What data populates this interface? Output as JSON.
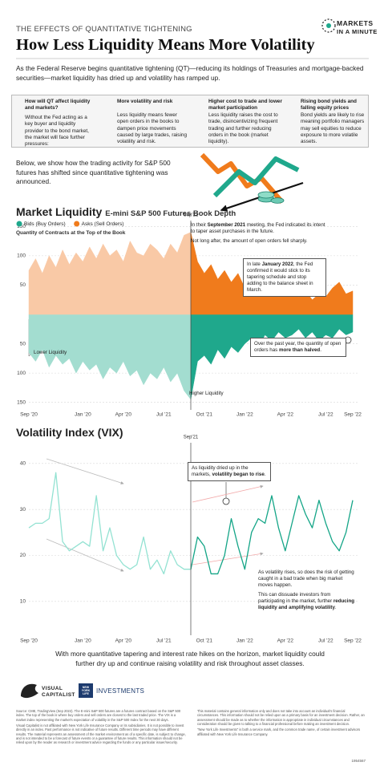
{
  "header": {
    "kicker": "THE EFFECTS OF QUANTITATIVE TIGHTENING",
    "title": "How Less Liquidity Means More Volatility",
    "logo": [
      "MARKETS",
      "IN A MINUTE"
    ]
  },
  "intro": "As the Federal Reserve begins quantitative tightening (QT)—reducing its holdings of Treasuries and mortgage-backed securities—market liquidity has dried up and volatility has ramped up.",
  "box": {
    "title": "How will QT affect liquidity and markets?",
    "text": "Without the Fed acting as a key buyer and liquidity provider to the bond market, the market will face further pressures:",
    "items": [
      {
        "title": "More volatility and risk",
        "text": "Less liquidity means fewer open orders in the books to dampen price movements caused by large trades, raising volatility and risk."
      },
      {
        "title": "Higher cost to trade and lower market participation",
        "text": "Less liquidity raises the cost to trade, disincentivizing frequent trading and further reducing orders in the book (market liquidity)."
      },
      {
        "title": "Rising bond yields and falling equity prices",
        "text": "Bond yields are likely to rise meaning portfolio managers may sell equities to reduce exposure to more volatile assets."
      }
    ]
  },
  "lead": "Below, we show how the trading activity for S&P 500 futures has shifted since quantitative tightening was announced.",
  "chart_data": [
    {
      "type": "area",
      "title": "Market Liquidity",
      "subtitle": "E-mini S&P 500 Futures Book Depth",
      "y_label": "Quantity of Contracts at the Top of the Book",
      "x": [
        0,
        0.5,
        1,
        1.5,
        2,
        2.5,
        3,
        3.5,
        4,
        4.5,
        5,
        5.5,
        6,
        6.5,
        7,
        7.5,
        8,
        8.5,
        9,
        9.5,
        10,
        10.5,
        11,
        11.5,
        12,
        12.5,
        13,
        13.5,
        14,
        14.5,
        15,
        15.5,
        16,
        16.5,
        17,
        17.5,
        18,
        18.5,
        19,
        19.5,
        20,
        20.5,
        21,
        21.5,
        22,
        22.5,
        23,
        23.5,
        24
      ],
      "xlim": [
        0,
        24
      ],
      "xticks": [
        {
          "value": 0,
          "label": "Sep '20"
        },
        {
          "value": 4,
          "label": "Jan '20"
        },
        {
          "value": 7,
          "label": "Apr '20"
        },
        {
          "value": 10,
          "label": "Jul '21"
        },
        {
          "value": 13,
          "label": "Oct '21"
        },
        {
          "value": 16,
          "label": "Jan '22"
        },
        {
          "value": 19,
          "label": "Apr '22"
        },
        {
          "value": 22,
          "label": "Jul '22"
        },
        {
          "value": 24,
          "label": "Sep '22"
        }
      ],
      "ylim": [
        -160,
        160
      ],
      "yticks": [
        {
          "value": -150,
          "label": "150"
        },
        {
          "value": -100,
          "label": "100"
        },
        {
          "value": -50,
          "label": "50"
        },
        50,
        100,
        150
      ],
      "grid": true,
      "marker": {
        "x": 12,
        "label": "Sep'21"
      },
      "series": [
        {
          "name": "Bids (Buy Orders)",
          "colors": [
            "#a3ddd0",
            "#1fa88c"
          ],
          "values": [
            -65,
            -80,
            -60,
            -90,
            -70,
            -85,
            -75,
            -100,
            -80,
            -95,
            -85,
            -110,
            -90,
            -100,
            -80,
            -105,
            -95,
            -120,
            -100,
            -110,
            -90,
            -115,
            -100,
            -130,
            -145,
            -80,
            -70,
            -85,
            -60,
            -75,
            -55,
            -65,
            -50,
            -40,
            -55,
            -35,
            -45,
            -30,
            -40,
            -35,
            -25,
            -40,
            -30,
            -45,
            -35,
            -40,
            -25,
            -35,
            -30
          ]
        },
        {
          "name": "Asks (Sell Orders)",
          "colors": [
            "#f9c9a6",
            "#f07b1c"
          ],
          "values": [
            75,
            95,
            70,
            100,
            80,
            110,
            85,
            105,
            90,
            115,
            95,
            120,
            100,
            110,
            90,
            125,
            105,
            100,
            120,
            110,
            95,
            120,
            105,
            135,
            140,
            90,
            70,
            85,
            60,
            75,
            55,
            70,
            45,
            35,
            50,
            30,
            40,
            30,
            45,
            35,
            30,
            40,
            25,
            35,
            30,
            45,
            55,
            35,
            40
          ]
        }
      ],
      "annotations": [
        {
          "parts": [
            {
              "text": "In their "
            },
            {
              "text": "September 2021",
              "bold": true
            },
            {
              "text": " meeting, the Fed indicated its intent to taper asset purchases in the future."
            }
          ]
        },
        {
          "parts": [
            {
              "text": "Not long after, the amount of open orders fell sharply."
            }
          ]
        },
        {
          "parts": [
            {
              "text": "In late "
            },
            {
              "text": "January 2022",
              "bold": true
            },
            {
              "text": ", the Fed confirmed it would stick to its tapering schedule and stop adding to the balance sheet in March."
            }
          ]
        },
        {
          "parts": [
            {
              "text": "Over the past year, the quantity of open orders has "
            },
            {
              "text": "more than halved",
              "bold": true
            },
            {
              "text": "."
            }
          ]
        },
        {
          "parts": [
            {
              "text": "Lower Liquidity"
            }
          ]
        },
        {
          "parts": [
            {
              "text": "Higher Liquidity"
            }
          ]
        }
      ]
    },
    {
      "type": "line",
      "title": "Volatility Index (VIX)",
      "x": [
        0,
        0.5,
        1,
        1.5,
        2,
        2.5,
        3,
        3.5,
        4,
        4.5,
        5,
        5.5,
        6,
        6.5,
        7,
        7.5,
        8,
        8.5,
        9,
        9.5,
        10,
        10.5,
        11,
        11.5,
        12,
        12.5,
        13,
        13.5,
        14,
        14.5,
        15,
        15.5,
        16,
        16.5,
        17,
        17.5,
        18,
        18.5,
        19,
        19.5,
        20,
        20.5,
        21,
        21.5,
        22,
        22.5,
        23,
        23.5,
        24
      ],
      "xlim": [
        0,
        24
      ],
      "xticks": [
        {
          "value": 0,
          "label": "Sep '20"
        },
        {
          "value": 4,
          "label": "Jan '20"
        },
        {
          "value": 7,
          "label": "Apr '20"
        },
        {
          "value": 10,
          "label": "Jul '21"
        },
        {
          "value": 13,
          "label": "Oct '21"
        },
        {
          "value": 16,
          "label": "Jan '22"
        },
        {
          "value": 19,
          "label": "Apr '22"
        },
        {
          "value": 22,
          "label": "Jul '22"
        },
        {
          "value": 24,
          "label": "Sep '22"
        }
      ],
      "ylim": [
        3,
        44.5
      ],
      "yticks": [
        10,
        20,
        30,
        40
      ],
      "grid": true,
      "marker": {
        "x": 12,
        "label": "Sep'21"
      },
      "series": [
        {
          "name": "VIX",
          "colors": [
            "#93e2d2",
            "#14a587"
          ],
          "values": [
            26,
            27,
            27,
            28,
            38,
            23,
            21,
            22,
            23,
            22,
            33,
            21,
            26,
            20,
            18,
            17,
            18,
            24,
            17,
            19,
            16,
            21,
            18,
            17,
            17,
            24,
            22,
            16,
            16,
            20,
            28,
            22,
            17,
            25,
            28,
            27,
            33,
            26,
            21,
            27,
            33,
            29,
            26,
            32,
            27,
            23,
            21,
            25,
            32
          ]
        }
      ],
      "annotations": [
        {
          "parts": [
            {
              "text": "As liquidity dried up in the markets, "
            },
            {
              "text": "volatility began to rise",
              "bold": true
            },
            {
              "text": "."
            }
          ]
        },
        {
          "parts": [
            {
              "text": "As volatility rises, so does the risk of getting caught in a bad trade when big market moves happen."
            }
          ]
        },
        {
          "parts": [
            {
              "text": "This can dissuade investors from participating in the market, further "
            },
            {
              "text": "reducing liquidity and amplifying volatility",
              "bold": true
            },
            {
              "text": "."
            }
          ]
        }
      ]
    }
  ],
  "conclusion": "With more quantitative tapering and interest rate hikes on the horizon, market liquidity could further dry up and continue raising volatility and risk throughout asset classes.",
  "footer": {
    "brand": [
      "VISUAL",
      "CAPITALIST"
    ],
    "partner": [
      "NEW YORK LIFE",
      "INVESTMENTS"
    ],
    "notes_left": [
      "Source: CME, TradingView (Sep 2022). The E-mini S&P 500 futures are a futures contract based on the S&P 500 index. The top of the book is where buy orders and sell orders are closest to the last traded price. The VIX is a market index representing the market's expectation of volatility in the S&P 500 Index for the next 30 days.",
      "Visual Capitalist is not affiliated with New York Life Insurance Company or its subsidiaries. It is not possible to invest directly in an index. Past performance is not indicative of future results. Different time periods may have different results. The material represents an assessment of the market environment as of a specific date, is subject to change, and is not intended to be a forecast of future events or a guarantee of future results. This information should not be relied upon by the reader as research or investment advice regarding the funds or any particular issuer/security."
    ],
    "notes_right": [
      "This material contains general information only and does not take into account an individual's financial circumstances. This information should not be relied upon as a primary basis for an investment decision. Rather, an assessment should be made as to whether the information is appropriate in individual circumstances and consideration should be given to talking to a financial professional before making an investment decision.",
      "\"New York Life Investments\" is both a service mark, and the common trade name, of certain investment advisors affiliated with New York Life Insurance Company."
    ],
    "code": "1954567"
  }
}
